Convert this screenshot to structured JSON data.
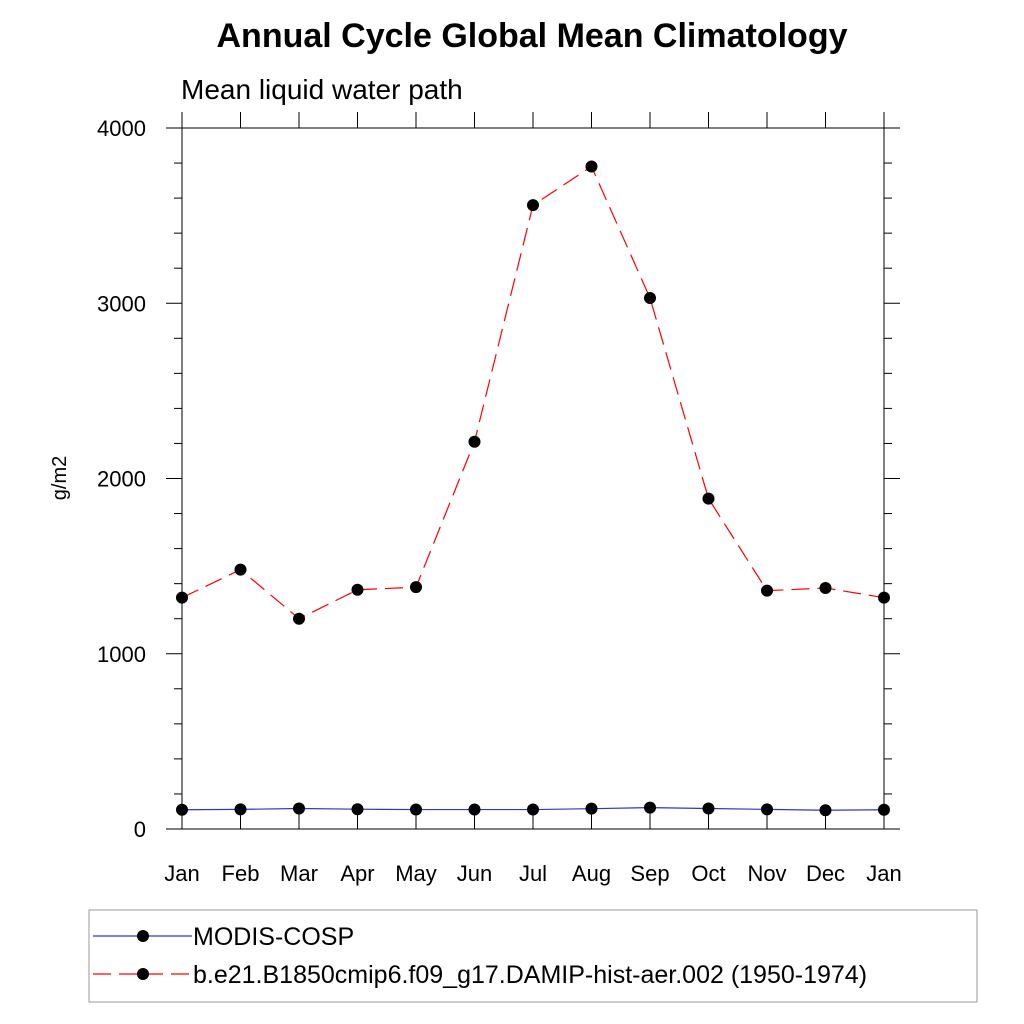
{
  "chart_data": {
    "type": "line",
    "title": "Annual Cycle Global Mean Climatology",
    "subtitle": "Mean liquid water path",
    "ylabel": "g/m2",
    "xlabel": "",
    "categories": [
      "Jan",
      "Feb",
      "Mar",
      "Apr",
      "May",
      "Jun",
      "Jul",
      "Aug",
      "Sep",
      "Oct",
      "Nov",
      "Dec",
      "Jan"
    ],
    "ylim": [
      0,
      4000
    ],
    "yticks": [
      0,
      1000,
      2000,
      3000,
      4000
    ],
    "ytick_labels": [
      "0",
      "1000",
      "2000",
      "3000",
      "4000"
    ],
    "grid": false,
    "legend_position": "bottom",
    "series": [
      {
        "name": "MODIS-COSP",
        "color": "#3333cc",
        "line_style": "solid",
        "marker": "filled-circle",
        "values": [
          110,
          112,
          117,
          113,
          111,
          111,
          111,
          116,
          122,
          117,
          112,
          107,
          110
        ]
      },
      {
        "name": "b.e21.B1850cmip6.f09_g17.DAMIP-hist-aer.002 (1950-1974)",
        "color": "#ff0000",
        "line_style": "dashed",
        "marker": "filled-circle",
        "values": [
          1320,
          1480,
          1200,
          1365,
          1380,
          2210,
          3560,
          3780,
          3030,
          1885,
          1360,
          1375,
          1320
        ]
      }
    ]
  }
}
